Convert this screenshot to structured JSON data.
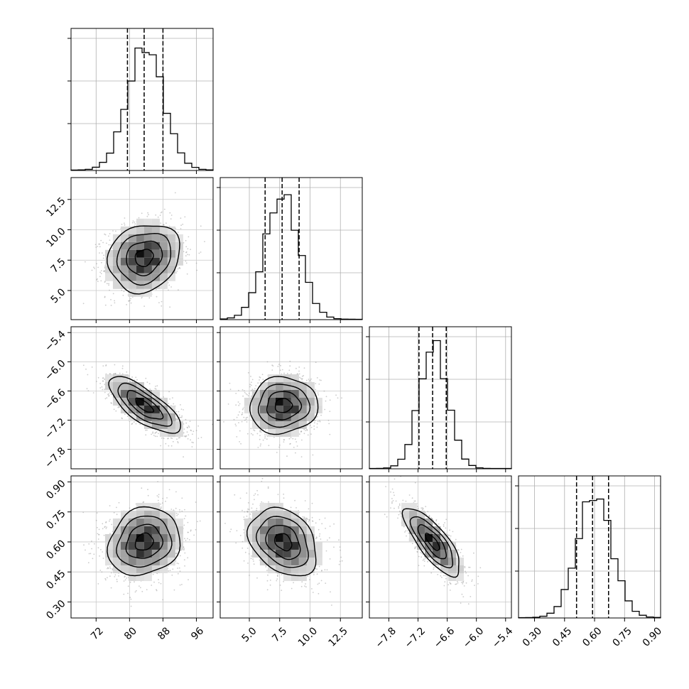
{
  "chart_data": {
    "type": "corner",
    "title": "",
    "grid": true,
    "params": [
      {
        "range": [
          66,
          100
        ],
        "ticks": [
          72,
          80,
          88,
          96
        ],
        "tick_labels": [
          "72",
          "80",
          "88",
          "96"
        ],
        "quantiles": [
          79.5,
          83.5,
          88.0
        ],
        "hist_peak": 83.8,
        "hist_sigma": 4.3
      },
      {
        "range": [
          2.6,
          14.3
        ],
        "ticks": [
          5.0,
          7.5,
          10.0,
          12.5
        ],
        "tick_labels": [
          "5.0",
          "7.5",
          "10.0",
          "12.5"
        ],
        "quantiles": [
          6.3,
          7.7,
          9.1
        ],
        "hist_peak": 7.7,
        "hist_sigma": 1.4
      },
      {
        "range": [
          -8.2,
          -5.28
        ],
        "ticks": [
          -7.8,
          -7.2,
          -6.6,
          -6.0,
          -5.4
        ],
        "tick_labels": [
          "−7.8",
          "−7.2",
          "−6.6",
          "−6.0",
          "−5.4"
        ],
        "quantiles": [
          -7.18,
          -6.9,
          -6.62
        ],
        "hist_peak": -6.88,
        "hist_sigma": 0.29
      },
      {
        "range": [
          0.22,
          0.93
        ],
        "ticks": [
          0.3,
          0.45,
          0.6,
          0.75,
          0.9
        ],
        "tick_labels": [
          "0.30",
          "0.45",
          "0.60",
          "0.75",
          "0.90"
        ],
        "quantiles": [
          0.51,
          0.59,
          0.67
        ],
        "hist_peak": 0.6,
        "hist_sigma": 0.085
      }
    ],
    "pairs": [
      {
        "row": 1,
        "col": 0,
        "center": [
          83.5,
          7.7
        ],
        "correlation": 0.15
      },
      {
        "row": 2,
        "col": 0,
        "center": [
          83.5,
          -6.9
        ],
        "correlation": -0.75
      },
      {
        "row": 2,
        "col": 1,
        "center": [
          7.8,
          -6.9
        ],
        "correlation": 0.05
      },
      {
        "row": 3,
        "col": 0,
        "center": [
          83.5,
          0.6
        ],
        "correlation": 0.15
      },
      {
        "row": 3,
        "col": 1,
        "center": [
          7.8,
          0.6
        ],
        "correlation": -0.3
      },
      {
        "row": 3,
        "col": 2,
        "center": [
          -6.9,
          0.6
        ],
        "correlation": -0.78
      }
    ]
  }
}
